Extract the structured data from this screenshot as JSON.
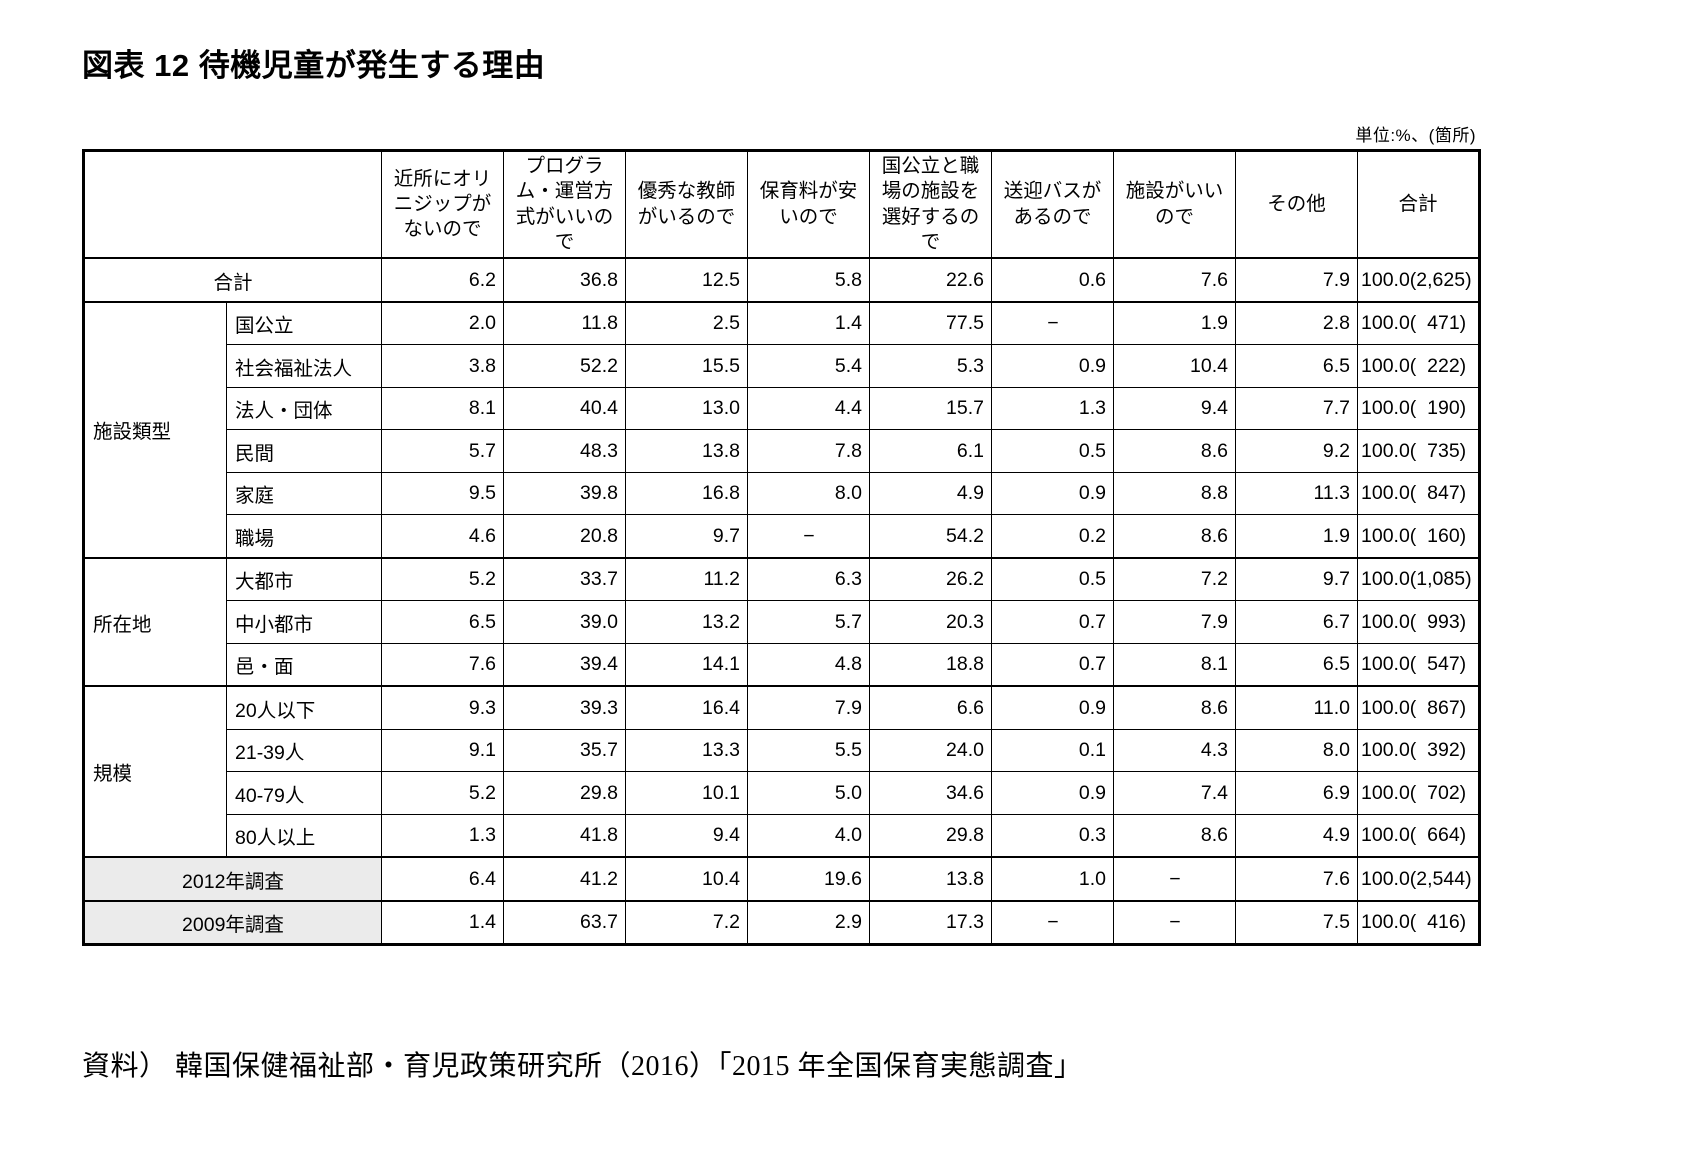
{
  "chart_data": {
    "type": "table",
    "title": "図表 12 待機児童が発生する理由",
    "unit_note": "単位:%、(箇所)",
    "source": "資料） 韓国保健福祉部・育児政策研究所（2016）「2015 年全国保育実態調査」",
    "columns": [
      "近所にオリニジップがないので",
      "プログラム・運営方式がいいので",
      "優秀な教師がいるので",
      "保育料が安いので",
      "国公立と職場の施設を選好するので",
      "送迎バスがあるので",
      "施設がいいので",
      "その他",
      "合計"
    ],
    "row_groups": [
      {
        "group": "",
        "rows": [
          {
            "label": "合計",
            "shaded": false,
            "values": [
              "6.2",
              "36.8",
              "12.5",
              "5.8",
              "22.6",
              "0.6",
              "7.6",
              "7.9",
              "100.0(2,625)"
            ]
          }
        ]
      },
      {
        "group": "施設類型",
        "rows": [
          {
            "label": "国公立",
            "shaded": false,
            "values": [
              "2.0",
              "11.8",
              "2.5",
              "1.4",
              "77.5",
              "−",
              "1.9",
              "2.8",
              "100.0(  471)"
            ]
          },
          {
            "label": "社会福祉法人",
            "shaded": false,
            "values": [
              "3.8",
              "52.2",
              "15.5",
              "5.4",
              "5.3",
              "0.9",
              "10.4",
              "6.5",
              "100.0(  222)"
            ]
          },
          {
            "label": "法人・団体",
            "shaded": false,
            "values": [
              "8.1",
              "40.4",
              "13.0",
              "4.4",
              "15.7",
              "1.3",
              "9.4",
              "7.7",
              "100.0(  190)"
            ]
          },
          {
            "label": "民間",
            "shaded": false,
            "values": [
              "5.7",
              "48.3",
              "13.8",
              "7.8",
              "6.1",
              "0.5",
              "8.6",
              "9.2",
              "100.0(  735)"
            ]
          },
          {
            "label": "家庭",
            "shaded": false,
            "values": [
              "9.5",
              "39.8",
              "16.8",
              "8.0",
              "4.9",
              "0.9",
              "8.8",
              "11.3",
              "100.0(  847)"
            ]
          },
          {
            "label": "職場",
            "shaded": false,
            "values": [
              "4.6",
              "20.8",
              "9.7",
              "−",
              "54.2",
              "0.2",
              "8.6",
              "1.9",
              "100.0(  160)"
            ]
          }
        ]
      },
      {
        "group": "所在地",
        "rows": [
          {
            "label": "大都市",
            "shaded": false,
            "values": [
              "5.2",
              "33.7",
              "11.2",
              "6.3",
              "26.2",
              "0.5",
              "7.2",
              "9.7",
              "100.0(1,085)"
            ]
          },
          {
            "label": "中小都市",
            "shaded": false,
            "values": [
              "6.5",
              "39.0",
              "13.2",
              "5.7",
              "20.3",
              "0.7",
              "7.9",
              "6.7",
              "100.0(  993)"
            ]
          },
          {
            "label": "邑・面",
            "shaded": false,
            "values": [
              "7.6",
              "39.4",
              "14.1",
              "4.8",
              "18.8",
              "0.7",
              "8.1",
              "6.5",
              "100.0(  547)"
            ]
          }
        ]
      },
      {
        "group": "規模",
        "rows": [
          {
            "label": "20人以下",
            "shaded": false,
            "values": [
              "9.3",
              "39.3",
              "16.4",
              "7.9",
              "6.6",
              "0.9",
              "8.6",
              "11.0",
              "100.0(  867)"
            ]
          },
          {
            "label": "21-39人",
            "shaded": false,
            "values": [
              "9.1",
              "35.7",
              "13.3",
              "5.5",
              "24.0",
              "0.1",
              "4.3",
              "8.0",
              "100.0(  392)"
            ]
          },
          {
            "label": "40-79人",
            "shaded": false,
            "values": [
              "5.2",
              "29.8",
              "10.1",
              "5.0",
              "34.6",
              "0.9",
              "7.4",
              "6.9",
              "100.0(  702)"
            ]
          },
          {
            "label": "80人以上",
            "shaded": false,
            "values": [
              "1.3",
              "41.8",
              "9.4",
              "4.0",
              "29.8",
              "0.3",
              "8.6",
              "4.9",
              "100.0(  664)"
            ]
          }
        ]
      },
      {
        "group": "",
        "rows": [
          {
            "label": "2012年調査",
            "shaded": true,
            "values": [
              "6.4",
              "41.2",
              "10.4",
              "19.6",
              "13.8",
              "1.0",
              "−",
              "7.6",
              "100.0(2,544)"
            ]
          }
        ]
      },
      {
        "group": "",
        "rows": [
          {
            "label": "2009年調査",
            "shaded": true,
            "values": [
              "1.4",
              "63.7",
              "7.2",
              "2.9",
              "17.3",
              "−",
              "−",
              "7.5",
              "100.0(  416)"
            ]
          }
        ]
      }
    ]
  }
}
